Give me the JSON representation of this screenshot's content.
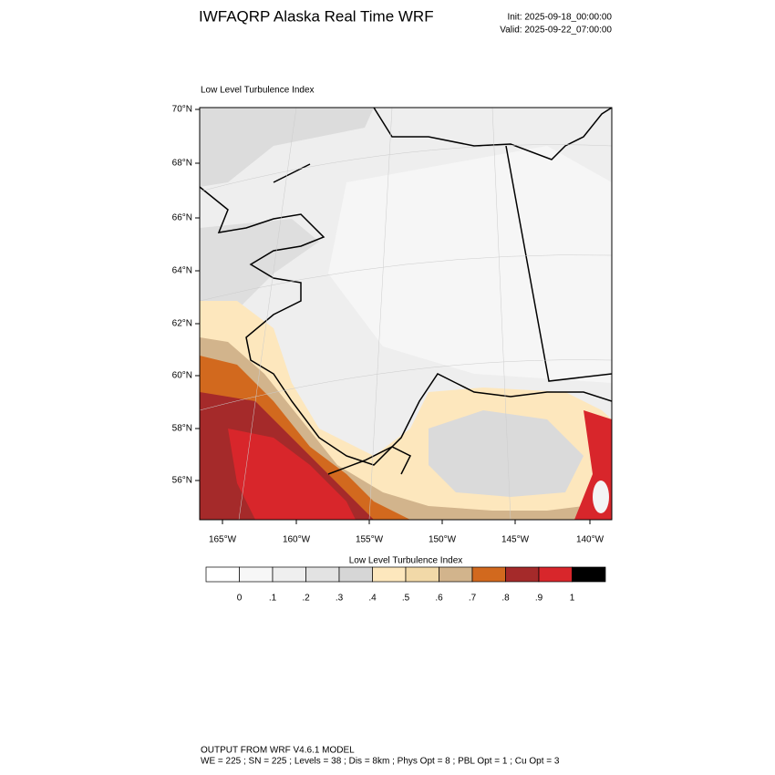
{
  "header": {
    "title": "IWFAQRP Alaska Real Time WRF",
    "init": "Init: 2025-09-18_00:00:00",
    "valid": "Valid: 2025-09-22_07:00:00"
  },
  "map": {
    "title": "Low Level Turbulence Index",
    "lat_labels": [
      "70°N",
      "68°N",
      "66°N",
      "64°N",
      "62°N",
      "60°N",
      "58°N",
      "56°N"
    ],
    "lon_labels": [
      "165°W",
      "160°W",
      "155°W",
      "150°W",
      "145°W",
      "140°W"
    ]
  },
  "colorbar": {
    "title": "Low Level Turbulence Index",
    "labels": [
      "0",
      ".1",
      ".2",
      ".3",
      ".4",
      ".5",
      ".6",
      ".7",
      ".8",
      ".9",
      "1"
    ],
    "colors": [
      "#ffffff",
      "#f7f7f7",
      "#efefef",
      "#e3e3e3",
      "#d6d6d6",
      "#fde7bd",
      "#f2d9a8",
      "#d2b48c",
      "#d2691e",
      "#a52a2a",
      "#d8262b",
      "#000000"
    ]
  },
  "footer": {
    "line1": "OUTPUT FROM WRF V4.6.1 MODEL",
    "line2": "WE = 225 ; SN = 225 ; Levels = 38 ; Dis = 8km ; Phys Opt = 8 ; PBL Opt = 1 ; Cu Opt = 3"
  }
}
